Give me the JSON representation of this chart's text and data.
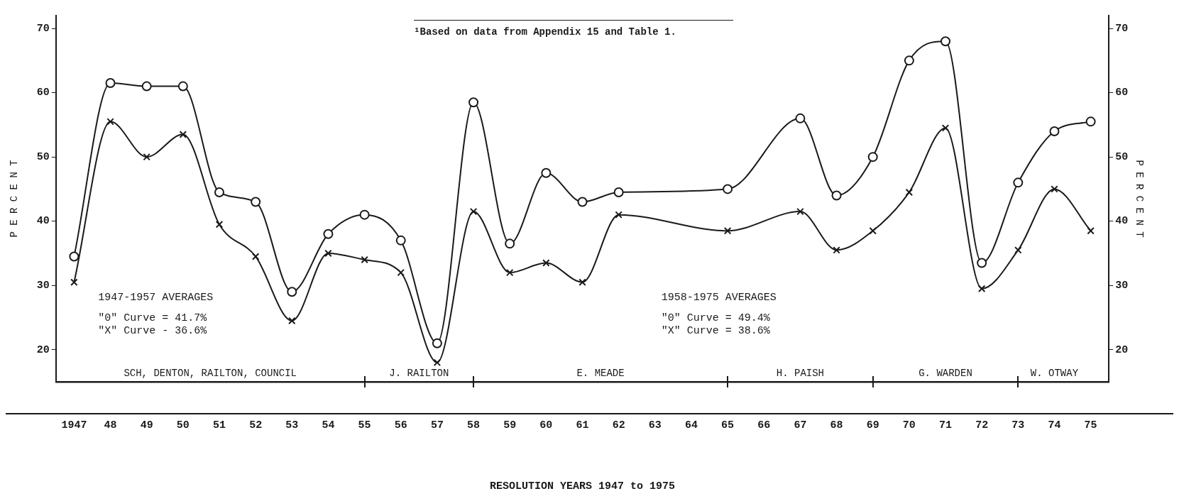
{
  "chart_data": {
    "type": "line",
    "xlabel": "RESOLUTION YEARS 1947 to 1975",
    "ylabel": "P E R C E N T",
    "y2label": "P E R C E N T",
    "categories": [
      "1947",
      "48",
      "49",
      "50",
      "51",
      "52",
      "53",
      "54",
      "55",
      "56",
      "57",
      "58",
      "59",
      "60",
      "61",
      "62",
      "63",
      "64",
      "65",
      "66",
      "67",
      "68",
      "69",
      "70",
      "71",
      "72",
      "73",
      "74",
      "75"
    ],
    "series": [
      {
        "color": "#1a1a1a",
        "marker": "circle",
        "values": [
          34.5,
          61.5,
          61,
          61,
          44.5,
          43,
          29,
          38,
          41,
          37,
          21,
          58.5,
          36.5,
          47.5,
          43,
          44.5,
          null,
          null,
          45,
          null,
          56,
          44,
          50,
          65,
          68,
          33.5,
          46,
          54,
          55.5
        ]
      },
      {
        "color": "#1a1a1a",
        "marker": "cross",
        "values": [
          30.5,
          55.5,
          50,
          53.5,
          39.5,
          34.5,
          24.5,
          35,
          34,
          32,
          18,
          41.5,
          32,
          33.5,
          30.5,
          41,
          null,
          null,
          38.5,
          null,
          41.5,
          35.5,
          38.5,
          44.5,
          54.5,
          29.5,
          35.5,
          45,
          38.5
        ]
      }
    ],
    "ylim": [
      15,
      72
    ],
    "yticks": [
      20,
      30,
      40,
      50,
      60,
      70
    ],
    "y2lim": [
      15,
      72
    ],
    "y2ticks": [
      20,
      30,
      40,
      50,
      60,
      70
    ],
    "grid": false,
    "legend": false,
    "annotations": [
      "¹Based on data from Appendix 15 and Table 1.",
      "1947-1957 AVERAGES",
      "\"0\" Curve = 41.7%",
      "\"X\" Curve - 36.6%",
      "1958-1975 AVERAGES",
      "\"0\" Curve = 49.4%",
      "\"X\" Curve = 38.6%",
      "SCH, DENTON, RAILTON, COUNCIL",
      "J. RAILTON",
      "E. MEADE",
      "H. PAISH",
      "G. WARDEN",
      "W. OTWAY"
    ]
  }
}
